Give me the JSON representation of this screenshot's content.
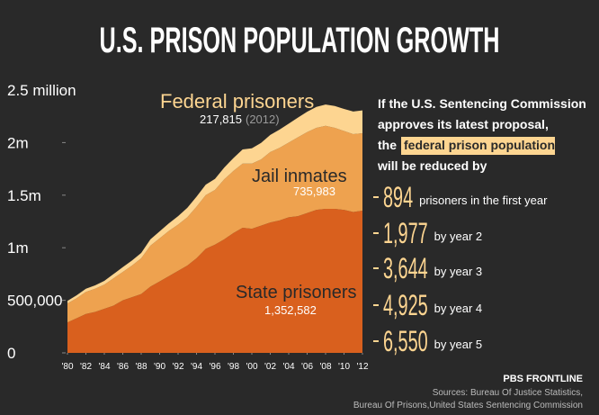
{
  "chart_data": {
    "type": "stacked-area",
    "title": "U.S. PRISON POPULATION GROWTH",
    "x": [
      1980,
      1981,
      1982,
      1983,
      1984,
      1985,
      1986,
      1987,
      1988,
      1989,
      1990,
      1991,
      1992,
      1993,
      1994,
      1995,
      1996,
      1997,
      1998,
      1999,
      2000,
      2001,
      2002,
      2003,
      2004,
      2005,
      2006,
      2007,
      2008,
      2009,
      2010,
      2011,
      2012
    ],
    "xlim": [
      1980,
      2012
    ],
    "xticks": [
      {
        "value": 1980,
        "label": "'80"
      },
      {
        "value": 1982,
        "label": "'82"
      },
      {
        "value": 1984,
        "label": "'84"
      },
      {
        "value": 1986,
        "label": "'86"
      },
      {
        "value": 1988,
        "label": "'88"
      },
      {
        "value": 1990,
        "label": "'90"
      },
      {
        "value": 1992,
        "label": "'92"
      },
      {
        "value": 1994,
        "label": "'94"
      },
      {
        "value": 1996,
        "label": "'96"
      },
      {
        "value": 1998,
        "label": "'98"
      },
      {
        "value": 2000,
        "label": "'00"
      },
      {
        "value": 2002,
        "label": "'02"
      },
      {
        "value": 2004,
        "label": "'04"
      },
      {
        "value": 2006,
        "label": "'06"
      },
      {
        "value": 2008,
        "label": "'08"
      },
      {
        "value": 2010,
        "label": "'10"
      },
      {
        "value": 2012,
        "label": "'12"
      }
    ],
    "ylim": [
      0,
      2500000
    ],
    "yticks": [
      0,
      {
        "value": 500000,
        "label": "500,000"
      },
      {
        "value": 1000000,
        "label": "1m"
      },
      {
        "value": 1500000,
        "label": "1.5m"
      },
      {
        "value": 2000000,
        "label": "2m"
      },
      {
        "value": 2500000,
        "label": "2.5 million"
      }
    ],
    "grid": false,
    "series": [
      {
        "name": "State prisoners",
        "color": "#d9601e",
        "values": [
          290000,
          330000,
          370000,
          390000,
          420000,
          450000,
          500000,
          530000,
          560000,
          630000,
          680000,
          730000,
          780000,
          830000,
          900000,
          990000,
          1030000,
          1080000,
          1140000,
          1190000,
          1180000,
          1210000,
          1240000,
          1260000,
          1290000,
          1300000,
          1330000,
          1360000,
          1370000,
          1370000,
          1360000,
          1340000,
          1352582
        ],
        "value_labels": [
          null,
          null,
          null,
          null,
          null,
          null,
          null,
          null,
          null,
          null,
          null,
          null,
          null,
          null,
          null,
          null,
          null,
          null,
          null,
          null,
          null,
          null,
          null,
          null,
          null,
          null,
          null,
          null,
          null,
          null,
          null,
          null,
          "1,352,582"
        ]
      },
      {
        "name": "Jail inmates",
        "color": "#eea24f",
        "values": [
          180000,
          190000,
          210000,
          220000,
          230000,
          260000,
          270000,
          300000,
          340000,
          390000,
          410000,
          430000,
          440000,
          460000,
          490000,
          510000,
          520000,
          570000,
          590000,
          610000,
          620000,
          630000,
          670000,
          690000,
          710000,
          750000,
          770000,
          780000,
          790000,
          770000,
          750000,
          740000,
          735983
        ],
        "value_labels": [
          null,
          null,
          null,
          null,
          null,
          null,
          null,
          null,
          null,
          null,
          null,
          null,
          null,
          null,
          null,
          null,
          null,
          null,
          null,
          null,
          null,
          null,
          null,
          null,
          null,
          null,
          null,
          null,
          null,
          null,
          null,
          null,
          "735,983"
        ]
      },
      {
        "name": "Federal prisoners",
        "color": "#fdd591",
        "values": [
          24000,
          28000,
          30000,
          32000,
          35000,
          40000,
          45000,
          49000,
          50000,
          60000,
          66000,
          72000,
          80000,
          90000,
          95000,
          100000,
          105000,
          112000,
          123000,
          135000,
          146000,
          157000,
          163000,
          173000,
          180000,
          188000,
          193000,
          199000,
          202000,
          208000,
          210000,
          216000,
          217815
        ],
        "value_labels": [
          null,
          null,
          null,
          null,
          null,
          null,
          null,
          null,
          null,
          null,
          null,
          null,
          null,
          null,
          null,
          null,
          null,
          null,
          null,
          null,
          null,
          null,
          null,
          null,
          null,
          null,
          null,
          null,
          null,
          null,
          null,
          null,
          "217,815"
        ],
        "label_note": "(2012)"
      }
    ]
  },
  "panel": {
    "intro": [
      "If the U.S. Sentencing Commission",
      "approves its latest proposal,",
      "the",
      "federal prison population",
      "will be reduced by"
    ],
    "reductions": [
      {
        "number": "894",
        "text": "prisoners in the first year"
      },
      {
        "number": "1,977",
        "text": "by year 2"
      },
      {
        "number": "3,644",
        "text": "by year 3"
      },
      {
        "number": "4,925",
        "text": "by year 4"
      },
      {
        "number": "6,550",
        "text": "by year 5"
      }
    ]
  },
  "footer": {
    "credit": "PBS FRONTLINE",
    "sources": [
      "Sources: Bureau Of Justice Statistics,",
      "Bureau Of Prisons,United States Sentencing Commission"
    ]
  }
}
